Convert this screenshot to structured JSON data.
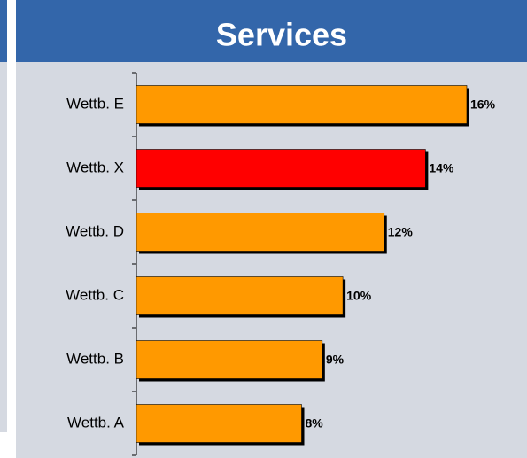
{
  "chart_data": {
    "type": "barh",
    "title": "Services",
    "categories": [
      "Wettb. E",
      "Wettb. X",
      "Wettb. D",
      "Wettb. C",
      "Wettb. B",
      "Wettb. A"
    ],
    "values": [
      16,
      14,
      12,
      10,
      9,
      8
    ],
    "value_labels": [
      "16%",
      "14%",
      "12%",
      "10%",
      "9%",
      "8%"
    ],
    "colors": [
      "#ff9900",
      "#ff0000",
      "#ff9900",
      "#ff9900",
      "#ff9900",
      "#ff9900"
    ]
  }
}
